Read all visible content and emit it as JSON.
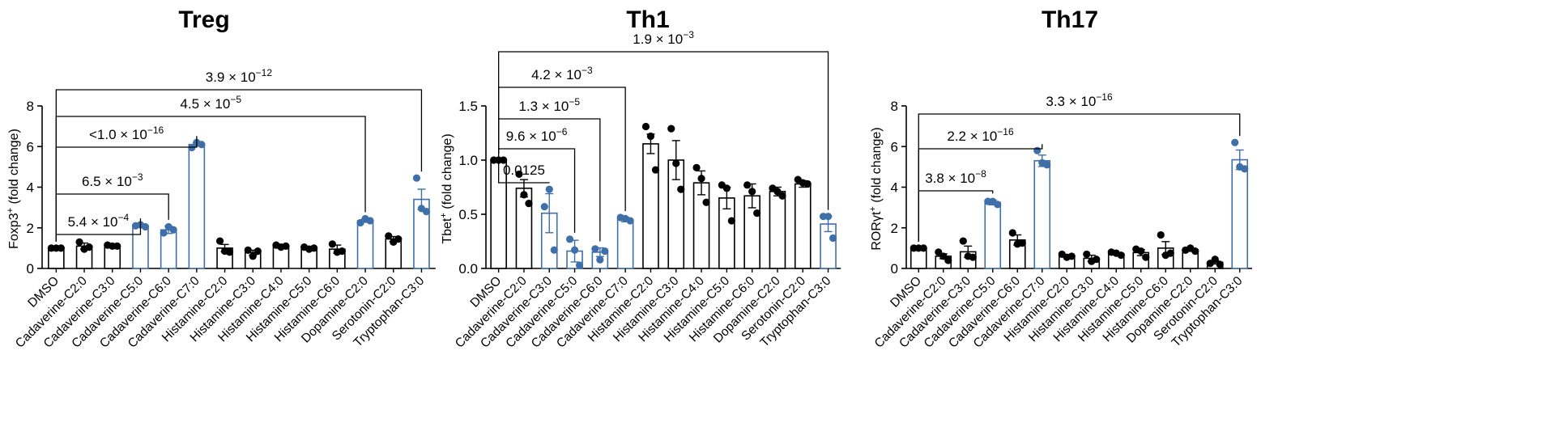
{
  "chart_data": [
    {
      "type": "bar",
      "title": "Treg",
      "ylabel_main": "Foxp3",
      "ylabel_sup": "+",
      "ylabel_rest": " (fold change)",
      "ylim": [
        0,
        8
      ],
      "yticks": [
        "0",
        "2",
        "4",
        "6",
        "8"
      ],
      "categories": [
        "DMSO",
        "Cadaverine-C2:0",
        "Cadaverine-C3:0",
        "Cadaverine-C5:0",
        "Cadaverine-C6:0",
        "Cadaverine-C7:0",
        "Histamine-C2:0",
        "Histamine-C3:0",
        "Histamine-C4:0",
        "Histamine-C5:0",
        "Histamine-C6:0",
        "Dopamine-C2:0",
        "Serotonin-C2:0",
        "Tryptophan-C3:0"
      ],
      "values": [
        1.0,
        1.1,
        1.12,
        2.1,
        1.9,
        6.1,
        1.0,
        0.78,
        1.1,
        1.0,
        0.95,
        2.35,
        1.45,
        3.4
      ],
      "errors": [
        0.02,
        0.15,
        0.05,
        0.04,
        0.18,
        0.08,
        0.18,
        0.12,
        0.06,
        0.06,
        0.2,
        0.08,
        0.12,
        0.5
      ],
      "points": [
        [
          1.0,
          1.0,
          1.0
        ],
        [
          1.3,
          0.95,
          1.05
        ],
        [
          1.15,
          1.1,
          1.1
        ],
        [
          2.1,
          2.15,
          2.05
        ],
        [
          1.75,
          2.05,
          1.9
        ],
        [
          5.95,
          6.2,
          6.1
        ],
        [
          1.35,
          0.85,
          0.8
        ],
        [
          0.9,
          0.6,
          0.85
        ],
        [
          1.15,
          1.05,
          1.1
        ],
        [
          1.05,
          0.95,
          1.0
        ],
        [
          1.2,
          0.8,
          0.85
        ],
        [
          2.25,
          2.45,
          2.35
        ],
        [
          1.6,
          1.3,
          1.45
        ],
        [
          4.45,
          2.95,
          2.8
        ]
      ],
      "highlighted": [
        3,
        4,
        5,
        11,
        13
      ],
      "comparisons": [
        {
          "label": "5.4 × 10",
          "exp": "−4",
          "to": 3
        },
        {
          "label": "6.5 × 10",
          "exp": "−3",
          "to": 4
        },
        {
          "label": "<1.0 × 10",
          "exp": "−16",
          "to": 5
        },
        {
          "label": "4.5 × 10",
          "exp": "−5",
          "to": 11
        },
        {
          "label": "3.9 × 10",
          "exp": "−12",
          "to": 13
        }
      ]
    },
    {
      "type": "bar",
      "title": "Th1",
      "ylabel_main": "Tbet",
      "ylabel_sup": "+",
      "ylabel_rest": " (fold change)",
      "ylim": [
        0,
        1.5
      ],
      "yticks": [
        "0.0",
        "0.5",
        "1.0",
        "1.5"
      ],
      "categories": [
        "DMSO",
        "Cadaverine-C2:0",
        "Cadaverine-C3:0",
        "Cadaverine-C5:0",
        "Cadaverine-C6:0",
        "Cadaverine-C7:0",
        "Histamine-C2:0",
        "Histamine-C3:0",
        "Histamine-C4:0",
        "Histamine-C5:0",
        "Histamine-C6:0",
        "Dopamine-C2:0",
        "Serotonin-C2:0",
        "Tryptophan-C3:0"
      ],
      "values": [
        1.0,
        0.74,
        0.51,
        0.16,
        0.15,
        0.45,
        1.15,
        1.0,
        0.79,
        0.65,
        0.67,
        0.71,
        0.78,
        0.41
      ],
      "errors": [
        0.005,
        0.08,
        0.18,
        0.1,
        0.04,
        0.02,
        0.09,
        0.18,
        0.11,
        0.1,
        0.11,
        0.04,
        0.03,
        0.07
      ],
      "points": [
        [
          1.0,
          1.0,
          1.0
        ],
        [
          0.87,
          0.68,
          0.6
        ],
        [
          0.57,
          0.73,
          0.17
        ],
        [
          0.27,
          0.17,
          0.03
        ],
        [
          0.18,
          0.08,
          0.16
        ],
        [
          0.47,
          0.46,
          0.44
        ],
        [
          1.31,
          1.22,
          0.91
        ],
        [
          1.29,
          0.97,
          0.73
        ],
        [
          0.93,
          0.83,
          0.61
        ],
        [
          0.77,
          0.74,
          0.44
        ],
        [
          0.77,
          0.71,
          0.51
        ],
        [
          0.74,
          0.71,
          0.67
        ],
        [
          0.82,
          0.79,
          0.78
        ],
        [
          0.48,
          0.48,
          0.28
        ]
      ],
      "highlighted": [
        2,
        3,
        4,
        5,
        13
      ],
      "comparisons": [
        {
          "label": "0.0125",
          "exp": "",
          "to": 2
        },
        {
          "label": "9.6 × 10",
          "exp": "−6",
          "to": 3
        },
        {
          "label": "1.3 × 10",
          "exp": "−5",
          "to": 4
        },
        {
          "label": "4.2 × 10",
          "exp": "−3",
          "to": 5
        },
        {
          "label": "1.9 × 10",
          "exp": "−3",
          "to": 13
        }
      ]
    },
    {
      "type": "bar",
      "title": "Th17",
      "ylabel_main": "RORγt",
      "ylabel_sup": "+",
      "ylabel_rest": " (fold change)",
      "ylim": [
        0,
        8
      ],
      "yticks": [
        "0",
        "2",
        "4",
        "6",
        "8"
      ],
      "categories": [
        "DMSO",
        "Cadaverine-C2:0",
        "Cadaverine-C3:0",
        "Cadaverine-C5:0",
        "Cadaverine-C6:0",
        "Cadaverine-C7:0",
        "Histamine-C2:0",
        "Histamine-C3:0",
        "Histamine-C4:0",
        "Histamine-C5:0",
        "Histamine-C6:0",
        "Dopamine-C2:0",
        "Serotonin-C2:0",
        "Tryptophan-C3:0"
      ],
      "values": [
        1.0,
        0.6,
        0.82,
        3.25,
        1.4,
        5.3,
        0.62,
        0.5,
        0.72,
        0.78,
        1.0,
        0.92,
        0.3,
        5.35
      ],
      "errors": [
        0.03,
        0.12,
        0.28,
        0.12,
        0.25,
        0.28,
        0.06,
        0.15,
        0.06,
        0.15,
        0.32,
        0.08,
        0.08,
        0.48
      ],
      "points": [
        [
          1.0,
          1.0,
          1.0
        ],
        [
          0.8,
          0.6,
          0.4
        ],
        [
          1.35,
          0.6,
          0.55
        ],
        [
          3.3,
          3.3,
          3.15
        ],
        [
          1.75,
          1.2,
          1.25
        ],
        [
          5.8,
          5.2,
          5.1
        ],
        [
          0.7,
          0.55,
          0.6
        ],
        [
          0.7,
          0.35,
          0.45
        ],
        [
          0.8,
          0.75,
          0.65
        ],
        [
          0.95,
          0.85,
          0.55
        ],
        [
          1.65,
          0.65,
          0.75
        ],
        [
          0.9,
          1.0,
          0.85
        ],
        [
          0.25,
          0.45,
          0.2
        ],
        [
          6.2,
          5.0,
          4.9
        ]
      ],
      "highlighted": [
        3,
        5,
        13
      ],
      "comparisons": [
        {
          "label": "3.8 × 10",
          "exp": "−8",
          "to": 3
        },
        {
          "label": "2.2 × 10",
          "exp": "−16",
          "to": 5
        },
        {
          "label": "3.3 × 10",
          "exp": "−16",
          "to": 13
        }
      ]
    }
  ],
  "colors": {
    "highlight": "#3f6fa8",
    "default": "#000000"
  }
}
